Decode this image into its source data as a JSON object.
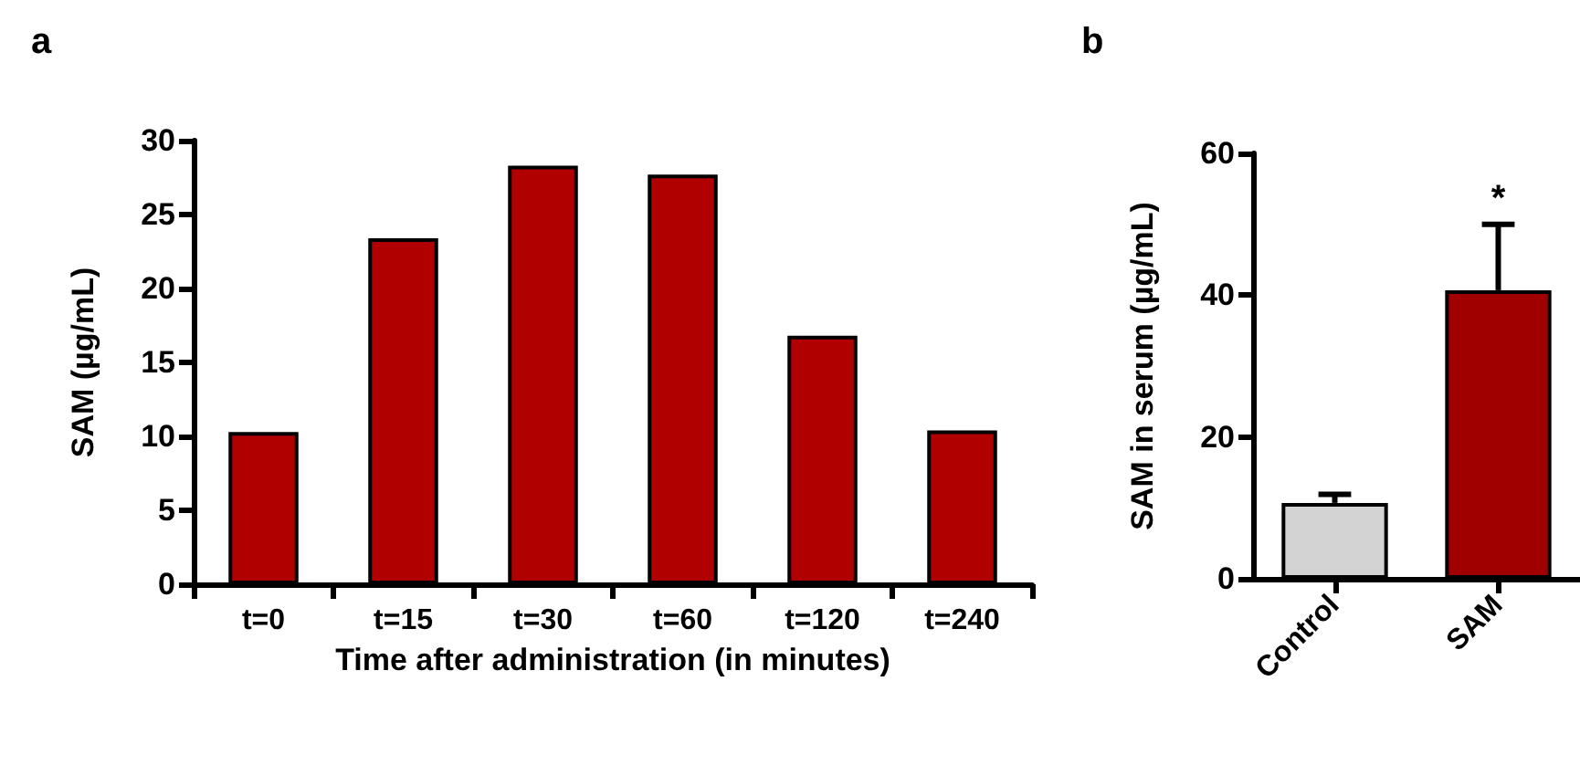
{
  "chart_data": [
    {
      "type": "bar",
      "title": "a",
      "xlabel": "Time after administration (in minutes)",
      "ylabel": "SAM (µg/mL)",
      "categories": [
        "t=0",
        "t=15",
        "t=30",
        "t=60",
        "t=120",
        "t=240"
      ],
      "values": [
        10.3,
        23.4,
        28.3,
        27.7,
        16.8,
        10.4
      ],
      "color": "#b00000",
      "ylim": [
        0,
        30
      ],
      "yticks": [
        0,
        5,
        10,
        15,
        20,
        25,
        30
      ],
      "grid": false
    },
    {
      "type": "bar",
      "title": "b",
      "ylabel": "SAM in serum (µg/mL)",
      "categories": [
        "Control",
        "SAM"
      ],
      "values": [
        10.7,
        40.7
      ],
      "colors": [
        "#d3d3d3",
        "#a00000"
      ],
      "errors": [
        [
          10.7,
          11.9
        ],
        [
          40.7,
          50
        ]
      ],
      "ylim": [
        0,
        60
      ],
      "yticks": [
        0,
        20,
        40,
        60
      ],
      "grid": false,
      "annotations": [
        "*"
      ]
    }
  ]
}
